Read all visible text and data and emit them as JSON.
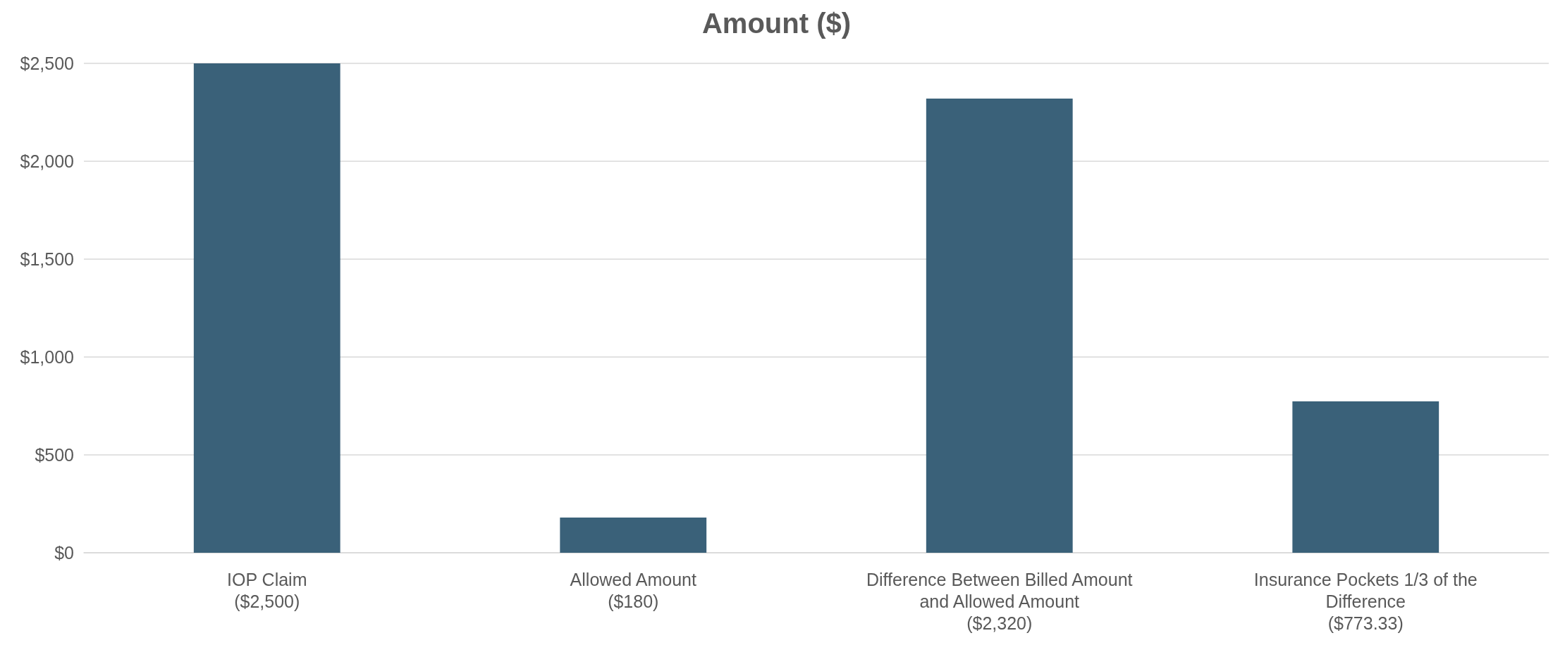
{
  "chart_data": {
    "type": "bar",
    "title": "Amount ($)",
    "categories": [
      "IOP Claim\n($2,500)",
      "Allowed Amount\n($180)",
      "Difference Between Billed Amount\nand Allowed Amount\n($2,320)",
      "Insurance Pockets 1/3 of the\nDifference\n($773.33)"
    ],
    "values": [
      2500,
      180,
      2320,
      773.33
    ],
    "color": "#3a6179",
    "ylim": [
      0,
      2500
    ],
    "yticks": [
      {
        "value": 0,
        "label": "$0"
      },
      {
        "value": 500,
        "label": "$500"
      },
      {
        "value": 1000,
        "label": "$1,000"
      },
      {
        "value": 1500,
        "label": "$1,500"
      },
      {
        "value": 2000,
        "label": "$2,000"
      },
      {
        "value": 2500,
        "label": "$2,500"
      }
    ],
    "grid": true
  }
}
